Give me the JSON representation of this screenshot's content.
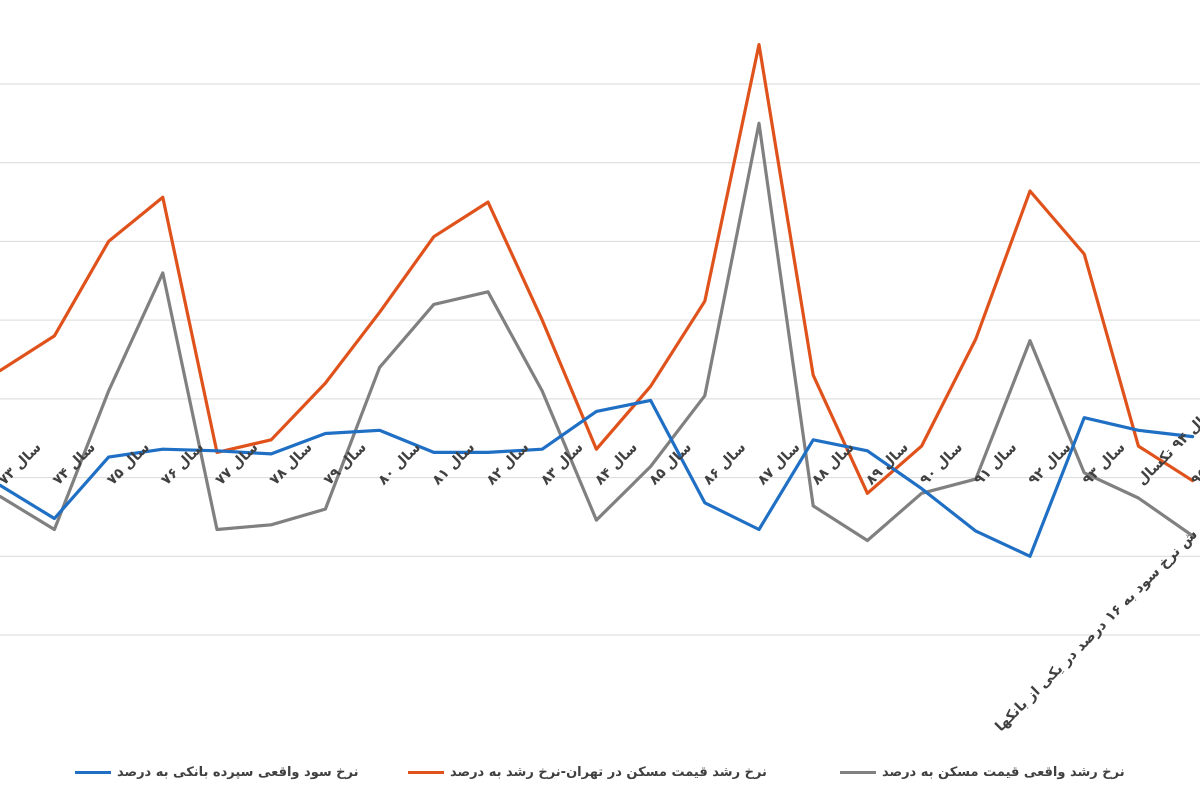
{
  "chart_data": {
    "type": "line",
    "categories": [
      "سال ۷۲",
      "سال ۷۳",
      "سال ۷۴",
      "سال ۷۵",
      "سال ۷۶",
      "سال ۷۷",
      "سال ۷۸",
      "سال ۷۹",
      "سال ۸۰",
      "سال ۸۱",
      "سال ۸۲",
      "سال ۸۳",
      "سال ۸۴",
      "سال ۸۵",
      "سال ۸۶",
      "سال ۸۷",
      "سال ۸۸",
      "سال ۸۹",
      "سال ۹۰",
      "سال ۹۱",
      "سال ۹۲",
      "سال ۹۳",
      "سال ۹۴ تکسال",
      "سال ۹۵"
    ],
    "last_category_note": "ش نرخ سود به ۱۶ درصد در یکی از بانکها",
    "series": [
      {
        "name": "نرخ سود واقعی سپرده بانکی به درصد",
        "color": "#1f6fc4",
        "values": [
          13,
          -5,
          -26,
          13,
          18,
          17,
          15,
          28,
          30,
          16,
          16,
          18,
          42,
          49,
          -16,
          -33,
          24,
          17,
          -7,
          -34,
          -50,
          38,
          30,
          26
        ]
      },
      {
        "name": "نرخ رشد قیمت مسکن در تهران-نرخ رشد به درصد",
        "color": "#e0521b",
        "values": [
          65,
          68,
          90,
          150,
          178,
          16,
          24,
          60,
          105,
          153,
          175,
          100,
          18,
          58,
          112,
          275,
          65,
          -10,
          20,
          88,
          182,
          142,
          20,
          -2
        ]
      },
      {
        "name": "نرخ رشد واقعی قیمت مسکن به درصد",
        "color": "#808080",
        "values": [
          0,
          -12,
          -33,
          55,
          130,
          -33,
          -30,
          -20,
          70,
          110,
          118,
          55,
          -27,
          7,
          52,
          225,
          -18,
          -40,
          -10,
          -1,
          87,
          3,
          -13,
          -37
        ]
      }
    ],
    "ylim": [
      -100,
      290
    ],
    "grid": true,
    "legend_position": "bottom"
  }
}
